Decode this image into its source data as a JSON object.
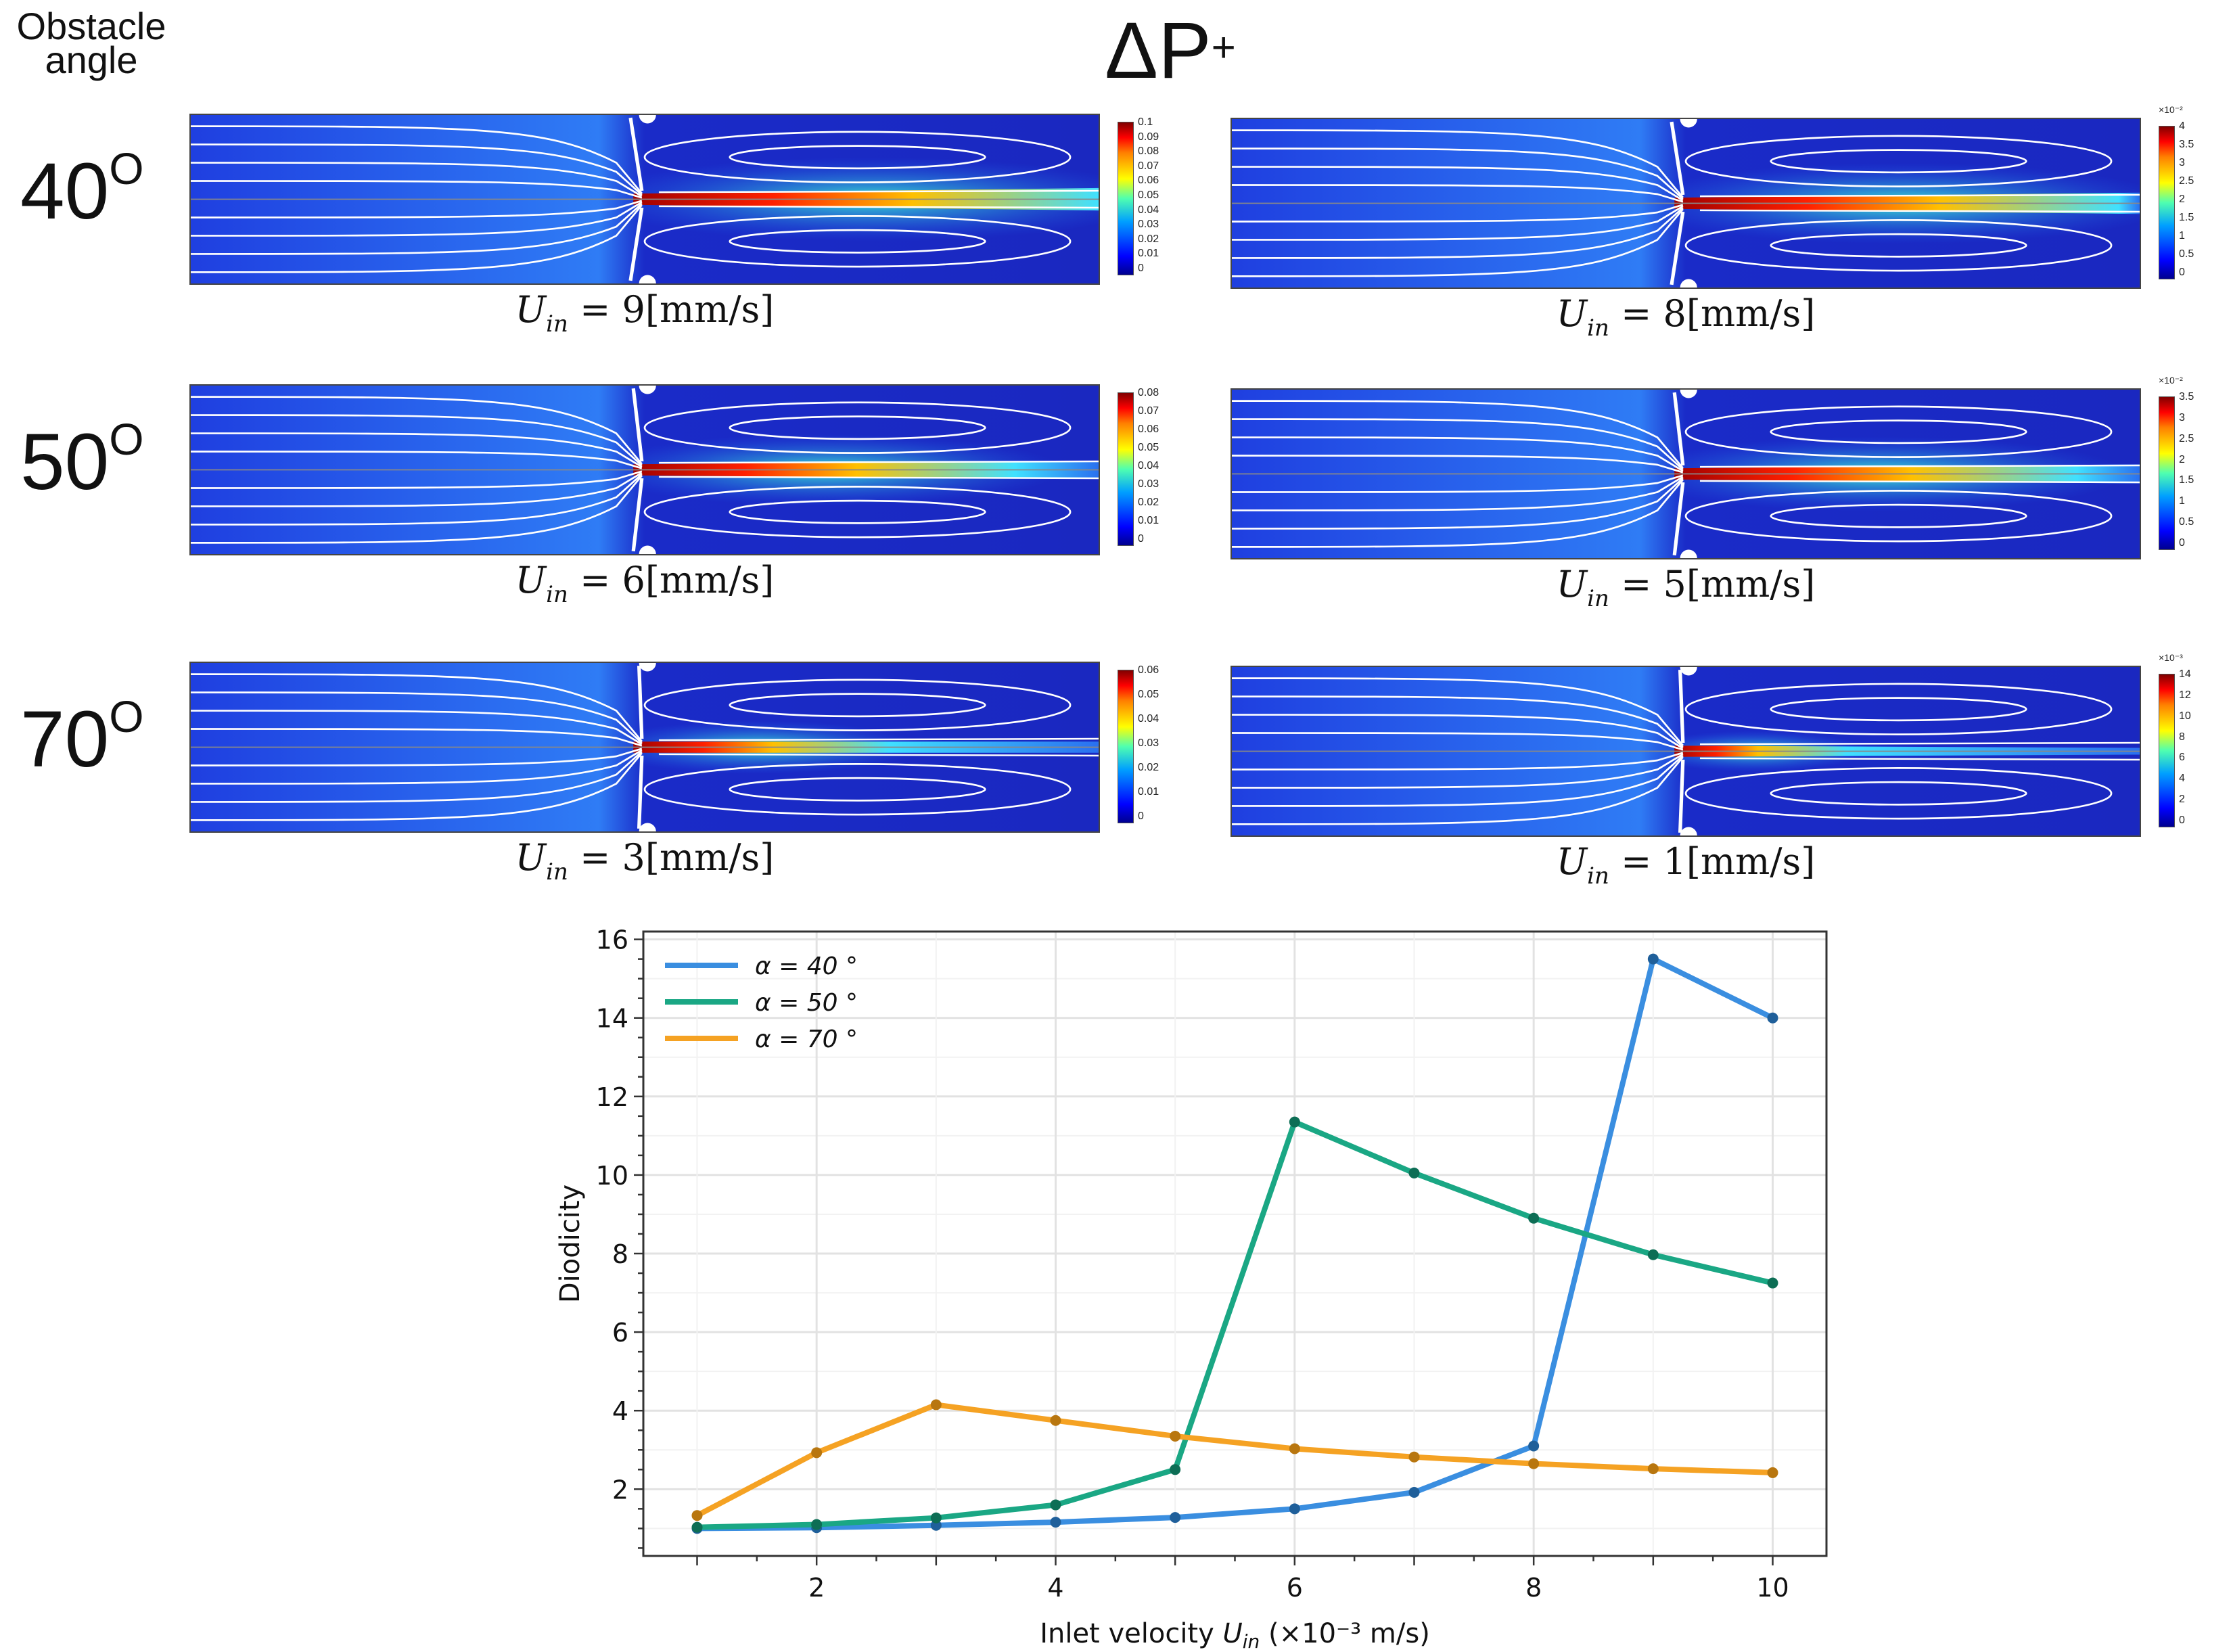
{
  "header": {
    "obstacle_label_line1": "Obstacle",
    "obstacle_label_line2": "angle",
    "title": "ΔP",
    "title_sup": "+"
  },
  "rows": [
    {
      "angle": "40",
      "degree": "O"
    },
    {
      "angle": "50",
      "degree": "O"
    },
    {
      "angle": "70",
      "degree": "O"
    }
  ],
  "panels": [
    {
      "caption_prefix": "U",
      "caption_sub": "in",
      "caption_value": " = 9[mm/s]",
      "colorbar_ticks": [
        "0.1",
        "0.09",
        "0.08",
        "0.07",
        "0.06",
        "0.05",
        "0.04",
        "0.03",
        "0.02",
        "0.01",
        "0"
      ],
      "colorbar_exponent": "",
      "obstacle_angle": 40,
      "jet": 1.0
    },
    {
      "caption_prefix": "U",
      "caption_sub": "in",
      "caption_value": " = 8[mm/s]",
      "colorbar_ticks": [
        "4",
        "3.5",
        "3",
        "2.5",
        "2",
        "1.5",
        "1",
        "0.5",
        "0"
      ],
      "colorbar_exponent": "×10⁻²",
      "obstacle_angle": 40,
      "jet": 0.95
    },
    {
      "caption_prefix": "U",
      "caption_sub": "in",
      "caption_value": " = 6[mm/s]",
      "colorbar_ticks": [
        "0.08",
        "0.07",
        "0.06",
        "0.05",
        "0.04",
        "0.03",
        "0.02",
        "0.01",
        "0"
      ],
      "colorbar_exponent": "",
      "obstacle_angle": 50,
      "jet": 0.8
    },
    {
      "caption_prefix": "U",
      "caption_sub": "in",
      "caption_value": " = 5[mm/s]",
      "colorbar_ticks": [
        "3.5",
        "3",
        "2.5",
        "2",
        "1.5",
        "1",
        "0.5",
        "0"
      ],
      "colorbar_exponent": "×10⁻²",
      "obstacle_angle": 50,
      "jet": 0.85
    },
    {
      "caption_prefix": "U",
      "caption_sub": "in",
      "caption_value": " = 3[mm/s]",
      "colorbar_ticks": [
        "0.06",
        "0.05",
        "0.04",
        "0.03",
        "0.02",
        "0.01",
        "0"
      ],
      "colorbar_exponent": "",
      "obstacle_angle": 70,
      "jet": 0.5
    },
    {
      "caption_prefix": "U",
      "caption_sub": "in",
      "caption_value": " = 1[mm/s]",
      "colorbar_ticks": [
        "14",
        "12",
        "10",
        "8",
        "6",
        "4",
        "2",
        "0"
      ],
      "colorbar_exponent": "×10⁻³",
      "obstacle_angle": 70,
      "jet": 0.3
    }
  ],
  "chart_data": {
    "type": "line",
    "title": "",
    "xlabel": "Inlet velocity U_in (×10⁻³ m/s)",
    "xlabel_parts": {
      "pre": "Inlet velocity ",
      "var": "U",
      "sub": "in",
      "post": " (×10⁻³ m/s)"
    },
    "ylabel": "Diodicity",
    "x": [
      1,
      2,
      3,
      4,
      5,
      6,
      7,
      8,
      9,
      10
    ],
    "xlim": [
      0.55,
      10.45
    ],
    "ylim": [
      0.3,
      16.2
    ],
    "xticks": [
      2,
      4,
      6,
      8,
      10
    ],
    "yticks": [
      2,
      4,
      6,
      8,
      10,
      12,
      14,
      16
    ],
    "grid": true,
    "legend_position": "top-left",
    "series": [
      {
        "name": "α = 40 °",
        "color": "#3a8ee0",
        "marker_color": "#1f5f9a",
        "values": [
          1.0,
          1.02,
          1.08,
          1.16,
          1.28,
          1.5,
          1.92,
          3.1,
          15.5,
          14.0
        ]
      },
      {
        "name": "α = 50 °",
        "color": "#1aa784",
        "marker_color": "#0d6e55",
        "values": [
          1.03,
          1.1,
          1.27,
          1.6,
          2.5,
          11.35,
          10.05,
          8.9,
          7.97,
          7.25
        ]
      },
      {
        "name": "α = 70 °",
        "color": "#f5a223",
        "marker_color": "#b8760f",
        "values": [
          1.33,
          2.93,
          4.15,
          3.75,
          3.35,
          3.03,
          2.82,
          2.65,
          2.52,
          2.42
        ]
      }
    ]
  }
}
